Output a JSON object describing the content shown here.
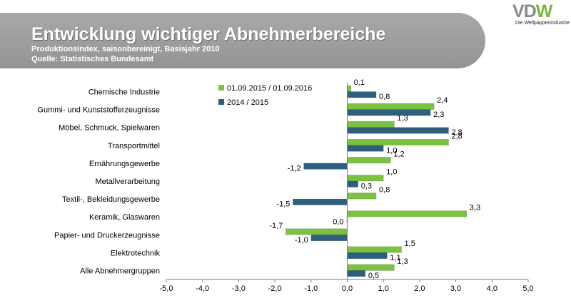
{
  "header": {
    "title": "Entwicklung wichtiger Abnehmerbereiche",
    "subtitle": "Produktionsindex, saisonbereinigt, Basisjahr 2010",
    "source": "Quelle: Statistisches Bundesamt"
  },
  "logo": {
    "letters": [
      "V",
      "D",
      "W"
    ],
    "tagline": "Die Wellpappenindustrie"
  },
  "colors": {
    "series_2016": "#7cc242",
    "series_2015": "#2f5f7f",
    "axis": "#7f7f7f",
    "banner": "#a0a0a0"
  },
  "chart_data": {
    "type": "bar",
    "orientation": "horizontal",
    "title": "",
    "xlabel": "",
    "ylabel": "",
    "xlim": [
      -5,
      5
    ],
    "xticks": [
      "-5,0",
      "-4,0",
      "-3,0",
      "-2,0",
      "-1,0",
      "0,0",
      "1,0",
      "2,0",
      "3,0",
      "4,0",
      "5,0"
    ],
    "grid": false,
    "legend_position": "top-center",
    "categories": [
      "Chemische Industrie",
      "Gummi- und Kunststofferzeugnisse",
      "Möbel, Schmuck, Spielwaren",
      "Transportmittel",
      "Ernährungsgewerbe",
      "Metallverarbeitung",
      "Textil-, Bekleidungsgewerbe",
      "Keramik, Glaswaren",
      "Papier- und Druckerzeugnisse",
      "Elektrotechnik",
      "Alle Abnehmergruppen"
    ],
    "series": [
      {
        "name": "01.09.2015 / 01.09.2016",
        "color": "#7cc242",
        "values": [
          0.1,
          2.4,
          1.3,
          2.8,
          1.2,
          1.0,
          0.8,
          3.3,
          -1.7,
          1.5,
          1.3
        ],
        "labels": [
          "0,1",
          "2,4",
          "1,3",
          "2,8",
          "1,2",
          "1,0",
          "0,8",
          "3,3",
          "-1,7",
          "1,5",
          "1,3"
        ]
      },
      {
        "name": "2014 / 2015",
        "color": "#2f5f7f",
        "values": [
          0.8,
          2.3,
          2.8,
          1.0,
          -1.2,
          0.3,
          -1.5,
          0.0,
          -1.0,
          1.1,
          0.5
        ],
        "labels": [
          "0,8",
          "2,3",
          "2,8",
          "1,0",
          "-1,2",
          "0,3",
          "-1,5",
          "0,0",
          "-1,0",
          "1,1",
          "0,5"
        ]
      }
    ]
  }
}
